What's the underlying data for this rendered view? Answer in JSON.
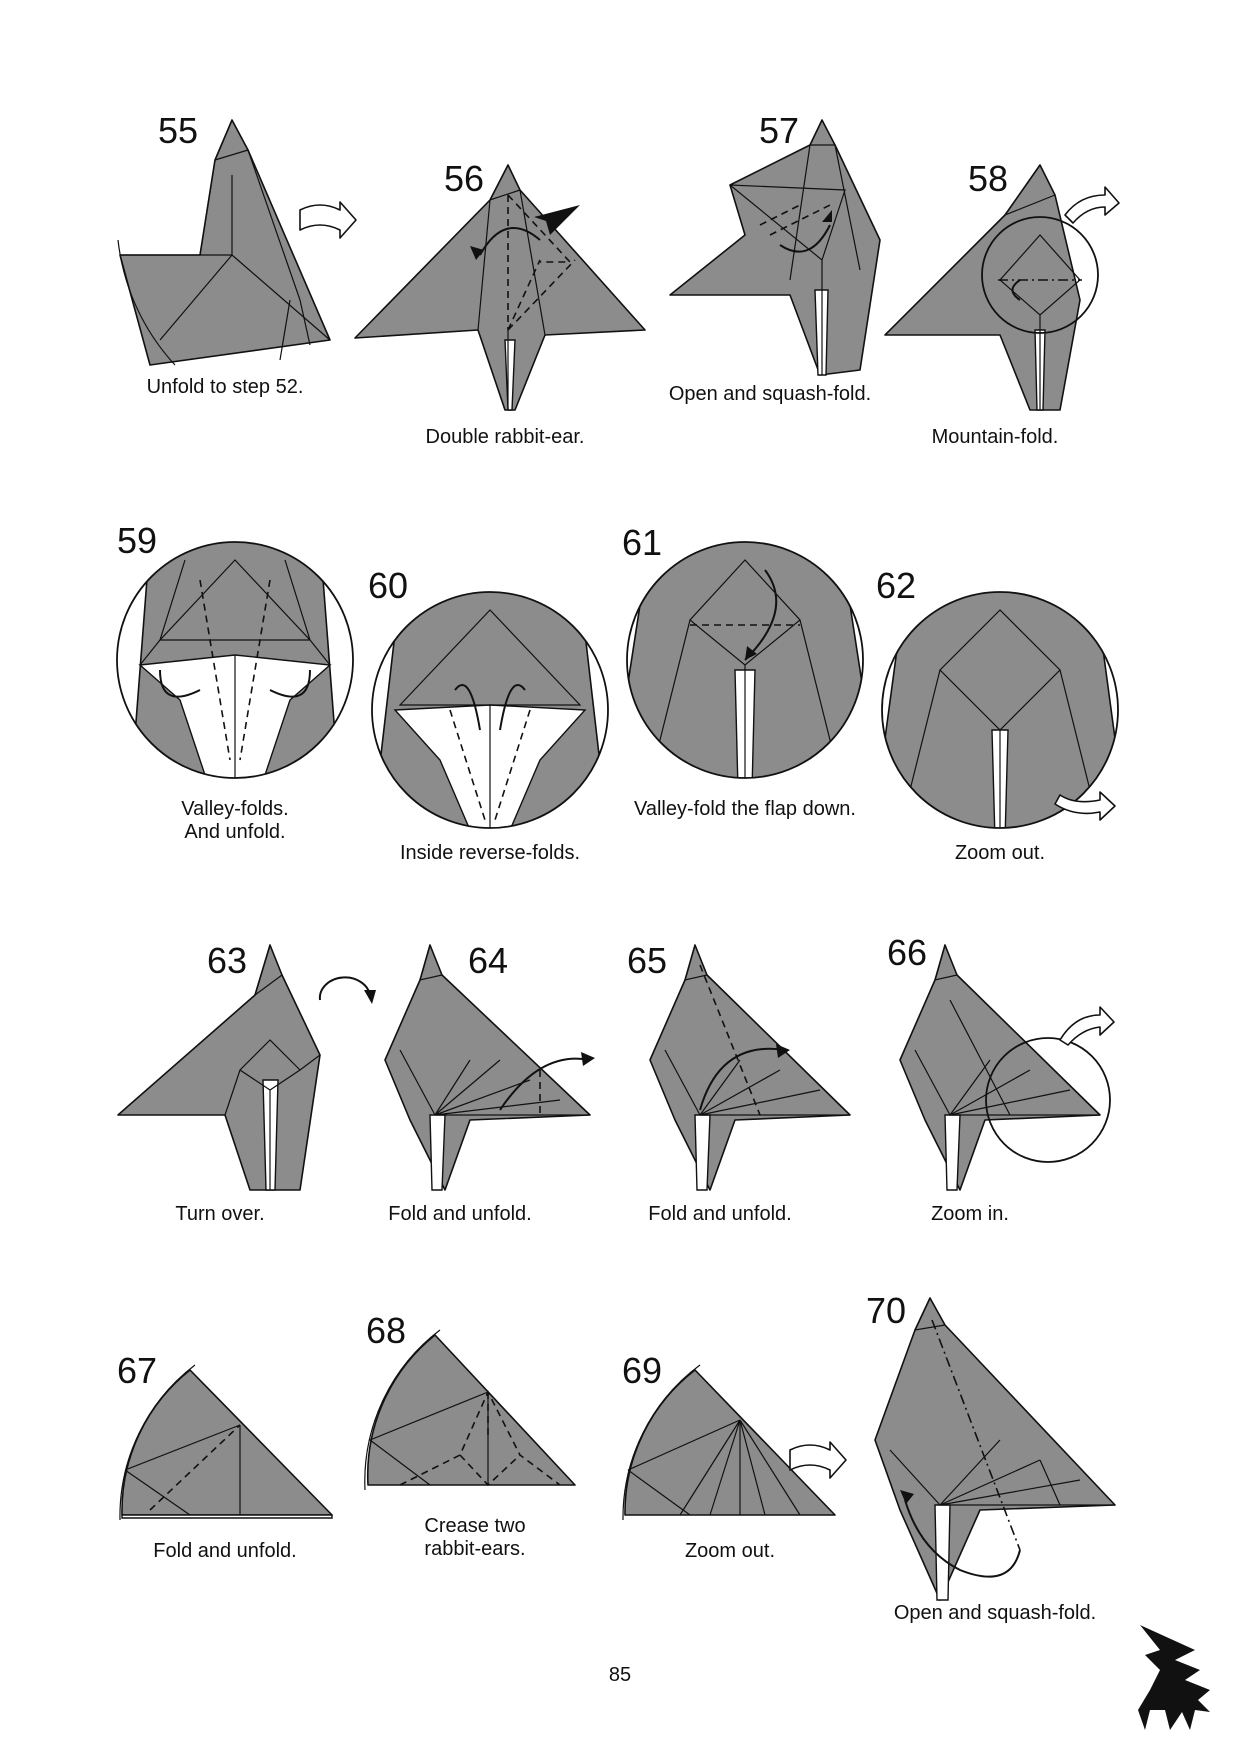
{
  "page_number": "85",
  "steps": {
    "s55": {
      "number": "55",
      "caption": "Unfold to step 52."
    },
    "s56": {
      "number": "56",
      "caption": "Double rabbit-ear."
    },
    "s57": {
      "number": "57",
      "caption": "Open and squash-fold."
    },
    "s58": {
      "number": "58",
      "caption": "Mountain-fold."
    },
    "s59": {
      "number": "59",
      "caption_line1": "Valley-folds.",
      "caption_line2": "And unfold."
    },
    "s60": {
      "number": "60",
      "caption": "Inside reverse-folds."
    },
    "s61": {
      "number": "61",
      "caption": "Valley-fold the flap down."
    },
    "s62": {
      "number": "62",
      "caption": "Zoom out."
    },
    "s63": {
      "number": "63",
      "caption": "Turn over."
    },
    "s64": {
      "number": "64",
      "caption": "Fold and unfold."
    },
    "s65": {
      "number": "65",
      "caption": "Fold and unfold."
    },
    "s66": {
      "number": "66",
      "caption": "Zoom in."
    },
    "s67": {
      "number": "67",
      "caption": "Fold and unfold."
    },
    "s68": {
      "number": "68",
      "caption_line1": "Crease two",
      "caption_line2": "rabbit-ears."
    },
    "s69": {
      "number": "69",
      "caption": "Zoom out."
    },
    "s70": {
      "number": "70",
      "caption": "Open and squash-fold."
    }
  },
  "colors": {
    "paper": "#8c8c8c",
    "line": "#111111",
    "background": "#ffffff"
  },
  "icons": [
    "pegasus-silhouette-icon"
  ]
}
